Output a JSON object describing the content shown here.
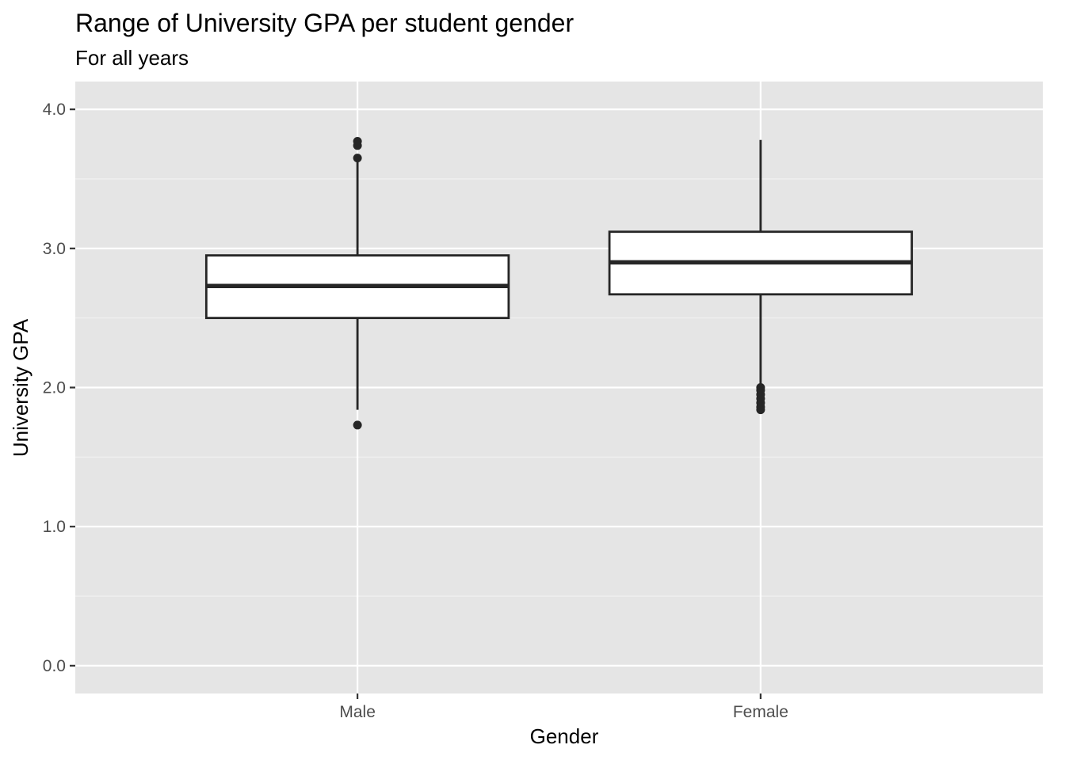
{
  "chart_data": {
    "type": "boxplot",
    "title": "Range of University GPA per student gender",
    "subtitle": "For all years",
    "xlabel": "Gender",
    "ylabel": "University GPA",
    "ylim": [
      -0.2,
      4.2
    ],
    "yticks": [
      0.0,
      1.0,
      2.0,
      3.0,
      4.0
    ],
    "ytick_labels": [
      "0.0",
      "1.0",
      "2.0",
      "3.0",
      "4.0"
    ],
    "grid": true,
    "legend": "none",
    "categories": [
      "Male",
      "Female"
    ],
    "boxes": [
      {
        "category": "Male",
        "whisker_low": 1.84,
        "q1": 2.5,
        "median": 2.73,
        "q3": 2.95,
        "whisker_high": 3.62,
        "outliers": [
          1.73,
          3.65,
          3.74,
          3.77
        ]
      },
      {
        "category": "Female",
        "whisker_low": 2.02,
        "q1": 2.67,
        "median": 2.9,
        "q3": 3.12,
        "whisker_high": 3.78,
        "outliers": [
          1.84,
          1.86,
          1.89,
          1.92,
          1.95,
          1.98,
          2.0
        ]
      }
    ],
    "colors": {
      "panel_background": "#e5e5e5",
      "grid_major": "#ffffff",
      "grid_minor": "#f2f2f2",
      "box_fill": "#ffffff",
      "box_line": "#262626",
      "tick_text": "#4d4d4d",
      "text": "#000000"
    }
  }
}
